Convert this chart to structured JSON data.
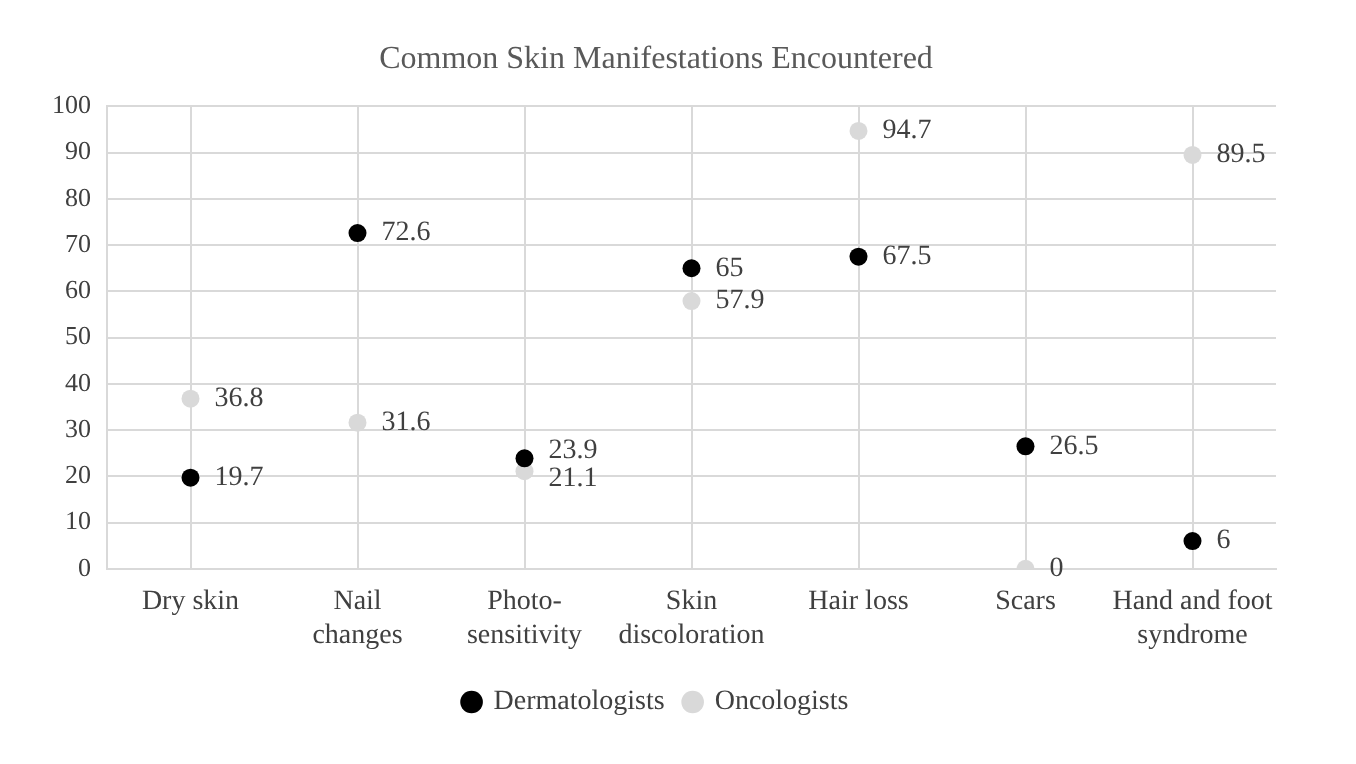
{
  "chart_data": {
    "type": "scatter",
    "title": "Common Skin Manifestations Encountered",
    "categories": [
      "Dry skin",
      "Nail changes",
      "Photo-sensitivity",
      "Skin discoloration",
      "Hair loss",
      "Scars",
      "Hand and foot syndrome"
    ],
    "series": [
      {
        "name": "Dermatologists",
        "color": "#000000",
        "values": [
          19.7,
          72.6,
          23.9,
          65,
          67.5,
          26.5,
          6
        ]
      },
      {
        "name": "Oncologists",
        "color": "#d9d9d9",
        "values": [
          36.8,
          31.6,
          21.1,
          57.9,
          94.7,
          0,
          89.5
        ]
      }
    ],
    "ylim": [
      0,
      100
    ],
    "yticks": [
      0,
      10,
      20,
      30,
      40,
      50,
      60,
      70,
      80,
      90,
      100
    ],
    "grid": true,
    "legend": "bottom",
    "marker": "circle",
    "data_labels": true
  }
}
